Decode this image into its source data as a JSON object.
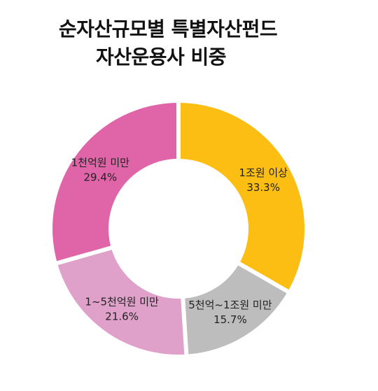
{
  "chart_data": {
    "type": "pie",
    "donut": true,
    "title": "순자산규모별 특별자산펀드 자산운용사 비중",
    "title_lines": [
      "순자산규모별 특별자산펀드",
      "자산운용사 비중"
    ],
    "unit": "%",
    "slices": [
      {
        "label": "1조원 이상",
        "value": 33.3,
        "value_text": "33.3%",
        "color": "#FCBE13"
      },
      {
        "label": "5천억~1조원 미만",
        "value": 15.7,
        "value_text": "15.7%",
        "color": "#BDBDBD"
      },
      {
        "label": "1~5천억원 미만",
        "value": 21.6,
        "value_text": "21.6%",
        "color": "#DFA0C9"
      },
      {
        "label": "1천억원 미만",
        "value": 29.4,
        "value_text": "29.4%",
        "color": "#E065A8"
      }
    ],
    "legend": "none"
  }
}
